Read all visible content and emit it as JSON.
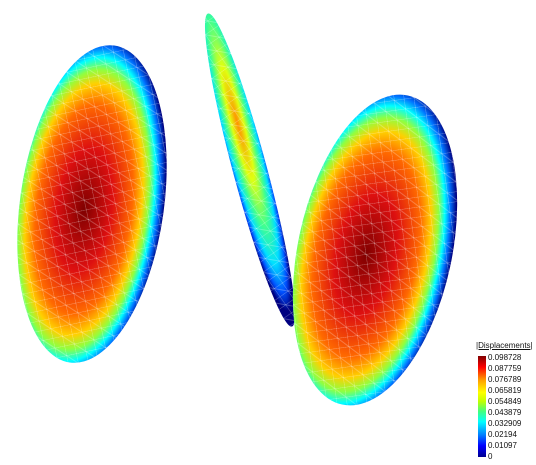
{
  "legend": {
    "title": "|Displacements|",
    "values": [
      "0.098728",
      "0.087759",
      "0.076789",
      "0.065819",
      "0.054849",
      "0.043879",
      "0.032909",
      "0.02194",
      "0.01097",
      "0"
    ]
  },
  "colormap": [
    "#800000",
    "#ff0000",
    "#ffa000",
    "#ffff00",
    "#40ff80",
    "#00ffff",
    "#0080ff",
    "#0000ff",
    "#00008f"
  ]
}
